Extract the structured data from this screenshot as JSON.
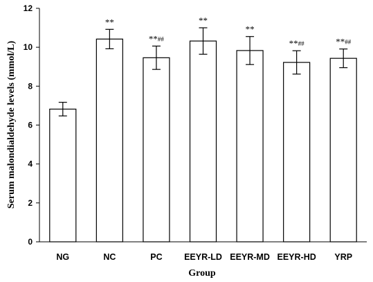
{
  "chart_data": {
    "type": "bar",
    "categories": [
      "NG",
      "NC",
      "PC",
      "EEYR-LD",
      "EEYR-MD",
      "EEYR-HD",
      "YRP"
    ],
    "values": [
      6.82,
      10.42,
      9.46,
      10.32,
      9.83,
      9.22,
      9.43
    ],
    "errors": [
      0.35,
      0.5,
      0.6,
      0.68,
      0.72,
      0.6,
      0.48
    ],
    "annotations": [
      {
        "stars": "",
        "hashes": ""
      },
      {
        "stars": "**",
        "hashes": ""
      },
      {
        "stars": "**",
        "hashes": "##"
      },
      {
        "stars": "**",
        "hashes": ""
      },
      {
        "stars": "**",
        "hashes": ""
      },
      {
        "stars": "**",
        "hashes": "##"
      },
      {
        "stars": "**",
        "hashes": "##"
      }
    ],
    "xlabel": "Group",
    "ylabel": "Serum malondialdehyde levels (mmol/L)",
    "ylim": [
      0,
      12
    ],
    "yticks": [
      "0",
      "2",
      "4",
      "6",
      "8",
      "10",
      "12"
    ],
    "grid": false,
    "bar_fill": "#ffffff",
    "bar_stroke": "#000000"
  }
}
